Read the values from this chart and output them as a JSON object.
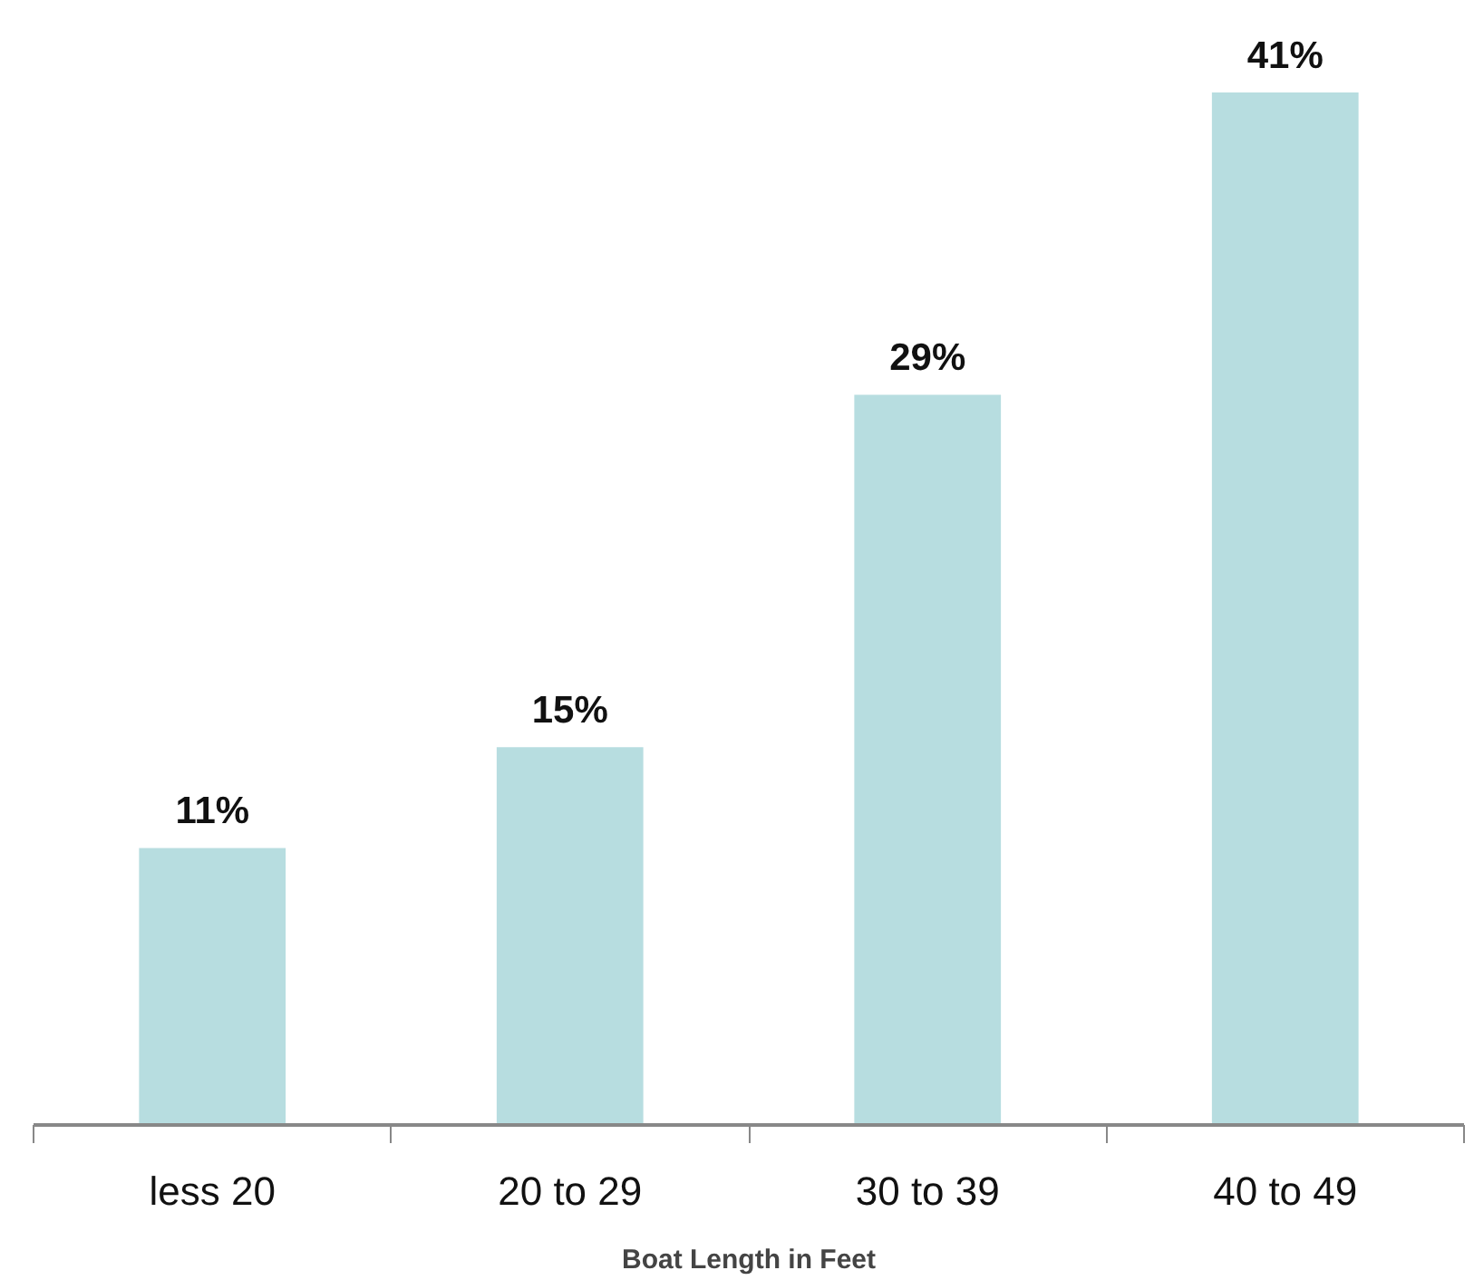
{
  "chart_data": {
    "type": "bar",
    "xlabel": "Boat Length in Feet",
    "categories": [
      "less 20",
      "20 to 29",
      "30 to 39",
      "40 to 49"
    ],
    "values": [
      11,
      15,
      29,
      41
    ],
    "color": "#b7dde0",
    "data_labels": true,
    "value_labels": [
      "11%",
      "15%",
      "29%",
      "41%"
    ]
  }
}
